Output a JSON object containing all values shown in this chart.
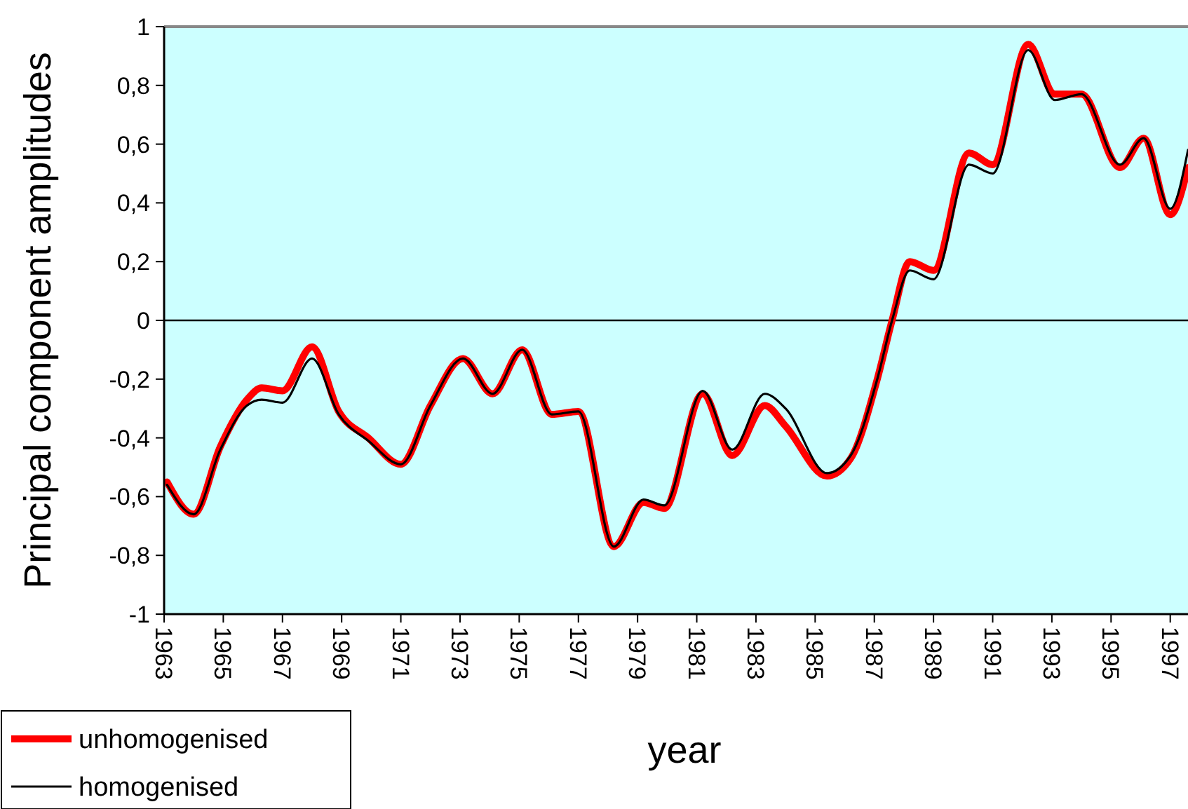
{
  "chart_data": {
    "type": "line",
    "xlabel": "year",
    "ylabel": "Principal component amplitudes",
    "x": [
      1963.1,
      1964.0,
      1964.9,
      1965.8,
      1966.3,
      1967.0,
      1968.0,
      1968.9,
      1969.9,
      1971.0,
      1972.0,
      1973.1,
      1974.1,
      1975.1,
      1976.1,
      1977.0,
      1978.2,
      1979.2,
      1979.9,
      1981.2,
      1982.2,
      1983.3,
      1984.0,
      1985.4,
      1986.2,
      1987.1,
      1987.6,
      1988.2,
      1989.0,
      1990.2,
      1991.0,
      1992.2,
      1993.1,
      1994.0,
      1995.3,
      1996.1,
      1997.0,
      1997.6
    ],
    "series": [
      {
        "name": "unhomogenised",
        "color": "#ff0000",
        "values": [
          -0.55,
          -0.66,
          -0.43,
          -0.27,
          -0.23,
          -0.24,
          -0.09,
          -0.31,
          -0.4,
          -0.49,
          -0.29,
          -0.13,
          -0.25,
          -0.1,
          -0.32,
          -0.31,
          -0.77,
          -0.62,
          -0.64,
          -0.25,
          -0.46,
          -0.29,
          -0.36,
          -0.53,
          -0.47,
          -0.2,
          0,
          0.2,
          0.17,
          0.57,
          0.53,
          0.94,
          0.77,
          0.77,
          0.52,
          0.62,
          0.36,
          0.52
        ]
      },
      {
        "name": "homogenised",
        "color": "#000000",
        "values": [
          -0.56,
          -0.66,
          -0.44,
          -0.29,
          -0.27,
          -0.28,
          -0.13,
          -0.32,
          -0.41,
          -0.49,
          -0.29,
          -0.13,
          -0.25,
          -0.1,
          -0.32,
          -0.31,
          -0.77,
          -0.61,
          -0.63,
          -0.24,
          -0.44,
          -0.25,
          -0.3,
          -0.52,
          -0.46,
          -0.2,
          0,
          0.17,
          0.14,
          0.53,
          0.5,
          0.92,
          0.75,
          0.77,
          0.53,
          0.62,
          0.38,
          0.58
        ]
      }
    ],
    "xlim": [
      1963,
      1997.6
    ],
    "xticks": [
      1963,
      1965,
      1967,
      1969,
      1971,
      1973,
      1975,
      1977,
      1979,
      1981,
      1983,
      1985,
      1987,
      1989,
      1991,
      1993,
      1995,
      1997
    ],
    "ylim": [
      -1,
      1
    ],
    "yticks": [
      -1,
      {
        "value": -0.8,
        "label": "-0,8"
      },
      {
        "value": -0.6,
        "label": "-0,6"
      },
      {
        "value": -0.4,
        "label": "-0,4"
      },
      {
        "value": -0.2,
        "label": "-0,2"
      },
      0,
      {
        "value": 0.2,
        "label": "0,2"
      },
      {
        "value": 0.4,
        "label": "0,4"
      },
      {
        "value": 0.6,
        "label": "0,6"
      },
      {
        "value": 0.8,
        "label": "0,8"
      },
      1
    ],
    "ref_lines": [
      {
        "axis": "y",
        "value": 0,
        "color": "#000000"
      }
    ],
    "legend": "bottom left",
    "grid": false,
    "marker": "none",
    "line_style": "solid"
  }
}
